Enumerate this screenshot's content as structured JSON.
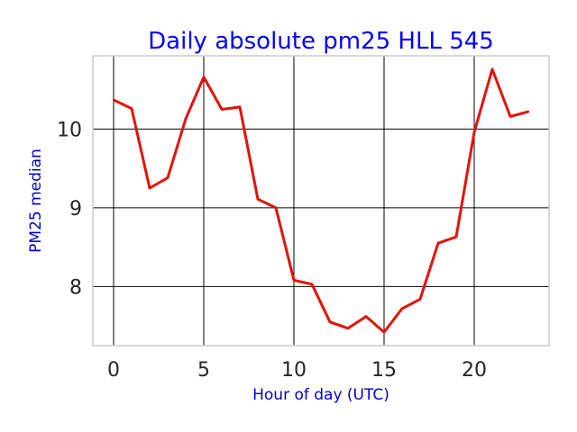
{
  "colors": {
    "title": "#0000ff",
    "axis_label": "#0000cd",
    "line": "#e6110a",
    "grid": "#000000",
    "frame": "#cccccc",
    "tick_text": "#262626"
  },
  "chart_data": {
    "type": "line",
    "title": "Daily absolute pm25 HLL 545",
    "xlabel": "Hour of day (UTC)",
    "ylabel": "PM25 median",
    "xlim": [
      -1.15,
      24.15
    ],
    "ylim": [
      7.25,
      10.93
    ],
    "xticks": [
      0,
      5,
      10,
      15,
      20
    ],
    "yticks": [
      8,
      9,
      10
    ],
    "grid": true,
    "legend": "none",
    "series": [
      {
        "x": [
          0,
          1,
          2,
          3,
          4,
          5,
          6,
          7,
          8,
          9,
          10,
          11,
          12,
          13,
          14,
          15,
          16,
          17,
          18,
          19,
          20,
          21,
          22,
          23
        ],
        "y": [
          10.37,
          10.26,
          9.25,
          9.38,
          10.13,
          10.66,
          10.25,
          10.28,
          9.11,
          9.0,
          8.08,
          8.03,
          7.55,
          7.47,
          7.62,
          7.42,
          7.72,
          7.84,
          8.55,
          8.63,
          9.96,
          10.76,
          10.16,
          10.22
        ]
      }
    ]
  }
}
